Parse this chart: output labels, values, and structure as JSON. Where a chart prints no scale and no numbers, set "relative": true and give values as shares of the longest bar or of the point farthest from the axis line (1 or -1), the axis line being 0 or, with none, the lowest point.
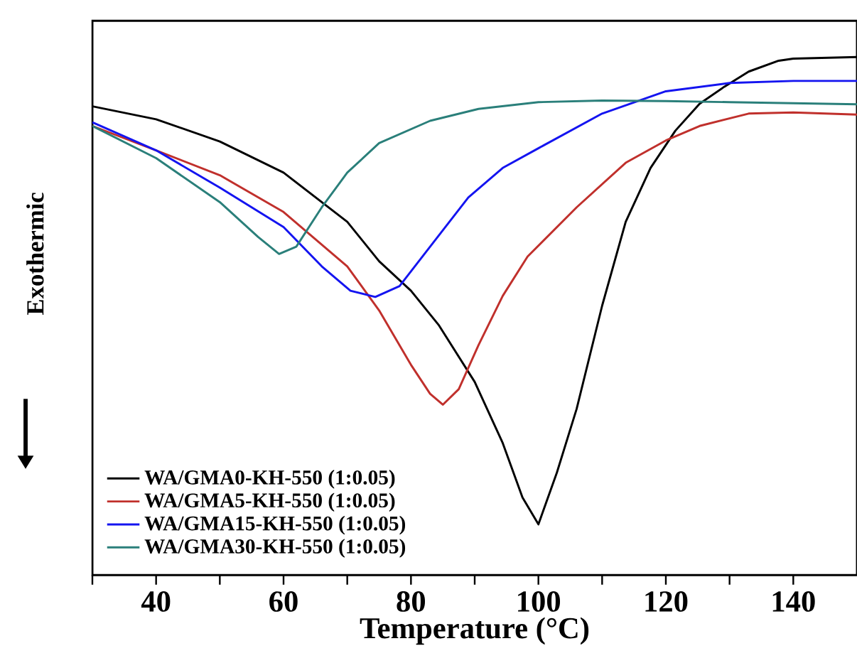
{
  "chart_data": {
    "type": "line",
    "relative": true,
    "xlabel": "Temperature (°C)",
    "ylabel": "Exothermic",
    "xlim": [
      30,
      150
    ],
    "xticks": [
      {
        "value": 30,
        "label": null
      },
      40,
      {
        "value": 50,
        "label": null
      },
      60,
      {
        "value": 70,
        "label": null
      },
      80,
      {
        "value": 90,
        "label": null
      },
      100,
      {
        "value": 110,
        "label": null
      },
      120,
      {
        "value": 130,
        "label": null
      },
      140
    ],
    "legend": "bottom left",
    "marker": "none",
    "line_style": "solid",
    "grid": false,
    "series": [
      {
        "name": "WA/GMA0-KH-550 (1:0.05)",
        "color": "#000000",
        "x": [
          30,
          40,
          50,
          60,
          70,
          75,
          80,
          84.4,
          90,
          94.4,
          97.5,
          100,
          102.9,
          106,
          110,
          113.7,
          117.6,
          121.5,
          125.3,
          129.2,
          133,
          137.7,
          140,
          150
        ],
        "values": [
          0.905,
          0.88,
          0.837,
          0.777,
          0.682,
          0.606,
          0.549,
          0.482,
          0.373,
          0.255,
          0.15,
          0.098,
          0.198,
          0.321,
          0.52,
          0.682,
          0.786,
          0.858,
          0.91,
          0.943,
          0.972,
          0.993,
          0.997,
          1.0
        ]
      },
      {
        "name": "WA/GMA5-KH-550 (1:0.05)",
        "color": "#c0302c",
        "x": [
          30,
          40,
          50,
          60,
          70,
          75,
          80,
          83,
          85,
          87.5,
          90.6,
          94.4,
          98.3,
          106,
          113.7,
          120,
          125.3,
          133,
          140,
          150
        ],
        "values": [
          0.867,
          0.82,
          0.772,
          0.701,
          0.596,
          0.511,
          0.406,
          0.35,
          0.329,
          0.359,
          0.444,
          0.539,
          0.615,
          0.71,
          0.796,
          0.839,
          0.867,
          0.891,
          0.893,
          0.889
        ]
      },
      {
        "name": "WA/GMA15-KH-550 (1:0.05)",
        "color": "#1414f0",
        "x": [
          30,
          40,
          50,
          60,
          66,
          70.5,
          74.4,
          78.2,
          83,
          89,
          94.4,
          100,
          110,
          120,
          130,
          140,
          150
        ],
        "values": [
          0.874,
          0.82,
          0.748,
          0.672,
          0.596,
          0.549,
          0.537,
          0.558,
          0.634,
          0.729,
          0.786,
          0.824,
          0.891,
          0.934,
          0.95,
          0.954,
          0.954
        ]
      },
      {
        "name": "WA/GMA30-KH-550 (1:0.05)",
        "color": "#2a7f7a",
        "x": [
          30,
          40,
          50,
          56,
          59.3,
          62,
          66,
          70,
          75,
          83,
          90.6,
          100,
          110,
          120,
          130,
          140,
          150
        ],
        "values": [
          0.867,
          0.805,
          0.72,
          0.653,
          0.62,
          0.634,
          0.71,
          0.777,
          0.834,
          0.877,
          0.9,
          0.913,
          0.916,
          0.915,
          0.913,
          0.911,
          0.909
        ]
      }
    ]
  }
}
